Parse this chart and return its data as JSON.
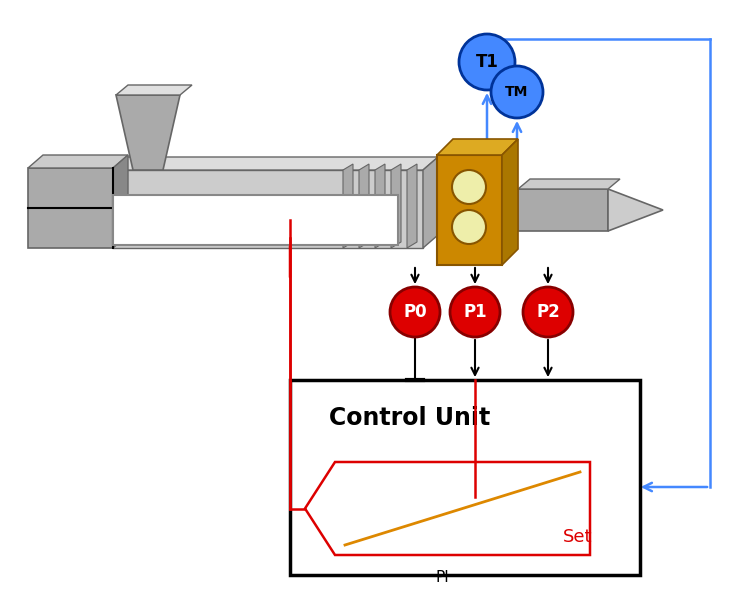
{
  "bg_color": "#ffffff",
  "gray_light": "#cccccc",
  "gray_mid": "#aaaaaa",
  "gray_dark": "#888888",
  "gray_darker": "#666666",
  "gold_front": "#cc8800",
  "gold_top": "#ddaa22",
  "gold_right": "#aa7700",
  "blue_circle": "#4488ff",
  "blue_arrow": "#4488ff",
  "red_color": "#dd0000",
  "orange_line": "#dd8800",
  "black": "#000000",
  "T1_label": "T1",
  "TM_label": "TM",
  "P0_label": "P0",
  "P1_label": "P1",
  "P2_label": "P2",
  "control_unit_label": "Control Unit",
  "PI_label": "PI",
  "Set_label": "Set",
  "figw": 7.47,
  "figh": 6.11,
  "dpi": 100
}
